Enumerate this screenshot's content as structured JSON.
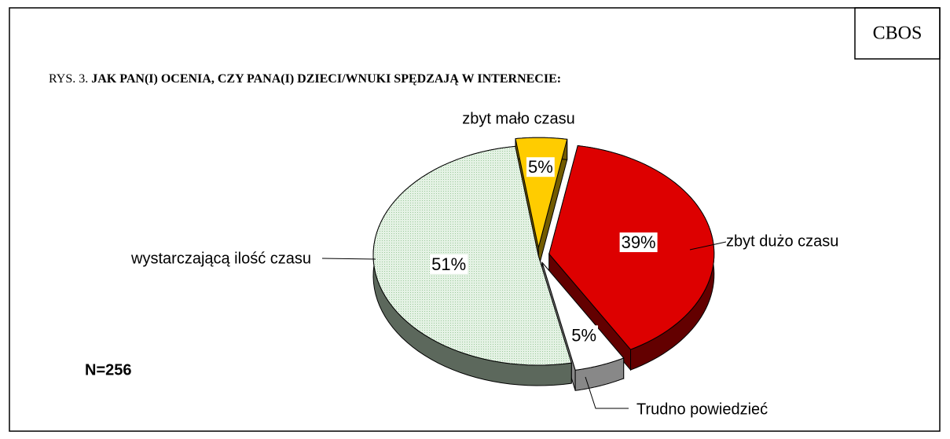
{
  "chart_data": {
    "type": "pie",
    "source": "CBOS",
    "title_prefix": "RYS. 3.",
    "title": "JAK PAN(I) OCENIA, CZY PANA(I) DZIECI/WNUKI SPĘDZAJĄ W INTERNECIE:",
    "note": "N=256",
    "categories": [
      "zbyt mało czasu",
      "zbyt dużo czasu",
      "Trudno powiedzieć",
      "wystarczającą ilość czasu"
    ],
    "values": [
      5,
      39,
      5,
      51
    ],
    "value_labels": [
      "5%",
      "39%",
      "5%",
      "51%"
    ],
    "colors": [
      "#ffcc00",
      "#dd0000",
      "#ffffff",
      "#cde6cd"
    ]
  }
}
